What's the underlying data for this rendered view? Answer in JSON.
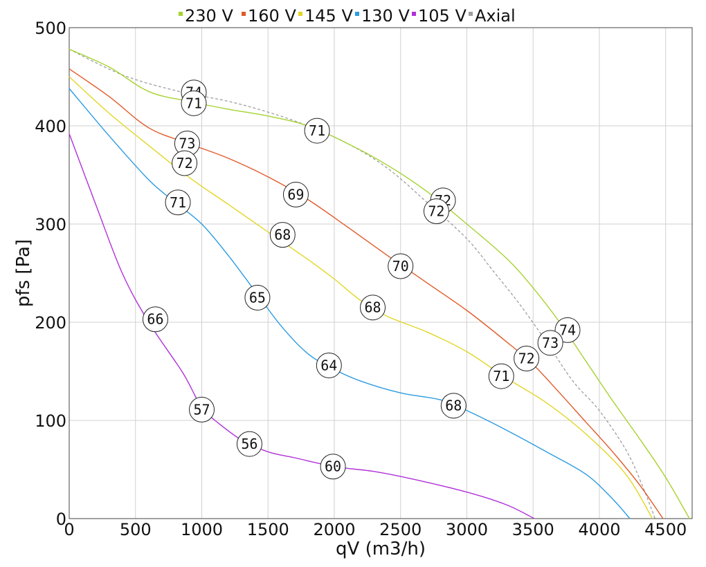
{
  "chart_data": {
    "type": "line",
    "xlabel": "qV (m3/h)",
    "ylabel": "pfs [Pa]",
    "xlim": [
      0,
      4700
    ],
    "ylim": [
      0,
      500
    ],
    "x_ticks": [
      "0",
      "500",
      "1000",
      "1500",
      "2000",
      "2500",
      "3000",
      "3500",
      "4000",
      "4500"
    ],
    "y_ticks": [
      "0",
      "100",
      "200",
      "300",
      "400",
      "500"
    ],
    "grid": true,
    "legend_position": "top",
    "series": [
      {
        "name": "230 V",
        "color": "#a6d22e",
        "dash": false,
        "points": [
          [
            0,
            478
          ],
          [
            300,
            460
          ],
          [
            600,
            435
          ],
          [
            900,
            425
          ],
          [
            1200,
            417
          ],
          [
            1500,
            410
          ],
          [
            1800,
            400
          ],
          [
            2100,
            382
          ],
          [
            2400,
            360
          ],
          [
            2700,
            333
          ],
          [
            3000,
            300
          ],
          [
            3300,
            265
          ],
          [
            3500,
            235
          ],
          [
            3700,
            200
          ],
          [
            3900,
            160
          ],
          [
            4100,
            120
          ],
          [
            4300,
            82
          ],
          [
            4500,
            42
          ],
          [
            4680,
            0
          ]
        ],
        "annotations": [
          [
            940,
            434,
            "74"
          ],
          [
            940,
            423,
            "71"
          ],
          [
            1870,
            395,
            "71"
          ],
          [
            2820,
            324,
            "72"
          ],
          [
            3760,
            192,
            "74"
          ]
        ]
      },
      {
        "name": "160 V",
        "color": "#e05a28",
        "dash": false,
        "points": [
          [
            0,
            458
          ],
          [
            300,
            430
          ],
          [
            600,
            398
          ],
          [
            900,
            382
          ],
          [
            1200,
            367
          ],
          [
            1500,
            348
          ],
          [
            1800,
            325
          ],
          [
            2100,
            297
          ],
          [
            2400,
            268
          ],
          [
            2700,
            240
          ],
          [
            3000,
            212
          ],
          [
            3300,
            180
          ],
          [
            3500,
            157
          ],
          [
            3700,
            128
          ],
          [
            3900,
            98
          ],
          [
            4100,
            68
          ],
          [
            4300,
            35
          ],
          [
            4480,
            0
          ]
        ],
        "annotations": [
          [
            890,
            382,
            "73"
          ],
          [
            1710,
            330,
            "69"
          ],
          [
            2500,
            257,
            "70"
          ],
          [
            3450,
            163,
            "72"
          ],
          [
            3630,
            179,
            "73"
          ]
        ]
      },
      {
        "name": "145 V",
        "color": "#e2d625",
        "dash": false,
        "points": [
          [
            0,
            450
          ],
          [
            300,
            413
          ],
          [
            600,
            380
          ],
          [
            900,
            348
          ],
          [
            1200,
            320
          ],
          [
            1500,
            292
          ],
          [
            1800,
            264
          ],
          [
            2000,
            244
          ],
          [
            2200,
            222
          ],
          [
            2400,
            206
          ],
          [
            2700,
            190
          ],
          [
            3000,
            170
          ],
          [
            3300,
            143
          ],
          [
            3600,
            118
          ],
          [
            3900,
            86
          ],
          [
            4200,
            45
          ],
          [
            4400,
            0
          ]
        ],
        "annotations": [
          [
            870,
            362,
            "72"
          ],
          [
            1610,
            289,
            "68"
          ],
          [
            2290,
            215,
            "68"
          ],
          [
            3260,
            145,
            "71"
          ]
        ]
      },
      {
        "name": "130 V",
        "color": "#2c9be0",
        "dash": false,
        "points": [
          [
            0,
            438
          ],
          [
            300,
            390
          ],
          [
            600,
            345
          ],
          [
            800,
            322
          ],
          [
            1000,
            300
          ],
          [
            1200,
            268
          ],
          [
            1400,
            232
          ],
          [
            1600,
            196
          ],
          [
            1800,
            168
          ],
          [
            2000,
            152
          ],
          [
            2200,
            140
          ],
          [
            2500,
            128
          ],
          [
            2800,
            121
          ],
          [
            3000,
            110
          ],
          [
            3300,
            90
          ],
          [
            3600,
            68
          ],
          [
            3900,
            45
          ],
          [
            4100,
            20
          ],
          [
            4230,
            0
          ]
        ],
        "annotations": [
          [
            820,
            322,
            "71"
          ],
          [
            1420,
            225,
            "65"
          ],
          [
            1960,
            156,
            "64"
          ],
          [
            2900,
            115,
            "68"
          ]
        ]
      },
      {
        "name": "105 V",
        "color": "#b030d8",
        "dash": false,
        "points": [
          [
            0,
            392
          ],
          [
            200,
            320
          ],
          [
            400,
            250
          ],
          [
            600,
            200
          ],
          [
            850,
            150
          ],
          [
            950,
            125
          ],
          [
            1000,
            112
          ],
          [
            1100,
            100
          ],
          [
            1300,
            80
          ],
          [
            1500,
            68
          ],
          [
            1700,
            62
          ],
          [
            2000,
            53
          ],
          [
            2300,
            48
          ],
          [
            2600,
            40
          ],
          [
            3000,
            27
          ],
          [
            3300,
            14
          ],
          [
            3510,
            0
          ]
        ],
        "annotations": [
          [
            650,
            203,
            "66"
          ],
          [
            1000,
            111,
            "57"
          ],
          [
            1360,
            76,
            "56"
          ],
          [
            1990,
            53,
            "60"
          ]
        ]
      },
      {
        "name": "Axial",
        "color": "#9e9e9e",
        "dash": true,
        "points": [
          [
            0,
            478
          ],
          [
            400,
            452
          ],
          [
            800,
            436
          ],
          [
            1200,
            425
          ],
          [
            1500,
            414
          ],
          [
            1800,
            400
          ],
          [
            2100,
            382
          ],
          [
            2400,
            357
          ],
          [
            2700,
            322
          ],
          [
            3000,
            285
          ],
          [
            3200,
            252
          ],
          [
            3400,
            218
          ],
          [
            3600,
            180
          ],
          [
            3800,
            140
          ],
          [
            4000,
            110
          ],
          [
            4200,
            70
          ],
          [
            4320,
            35
          ],
          [
            4420,
            0
          ]
        ],
        "annotations": [
          [
            2770,
            313,
            "72"
          ]
        ]
      }
    ]
  }
}
